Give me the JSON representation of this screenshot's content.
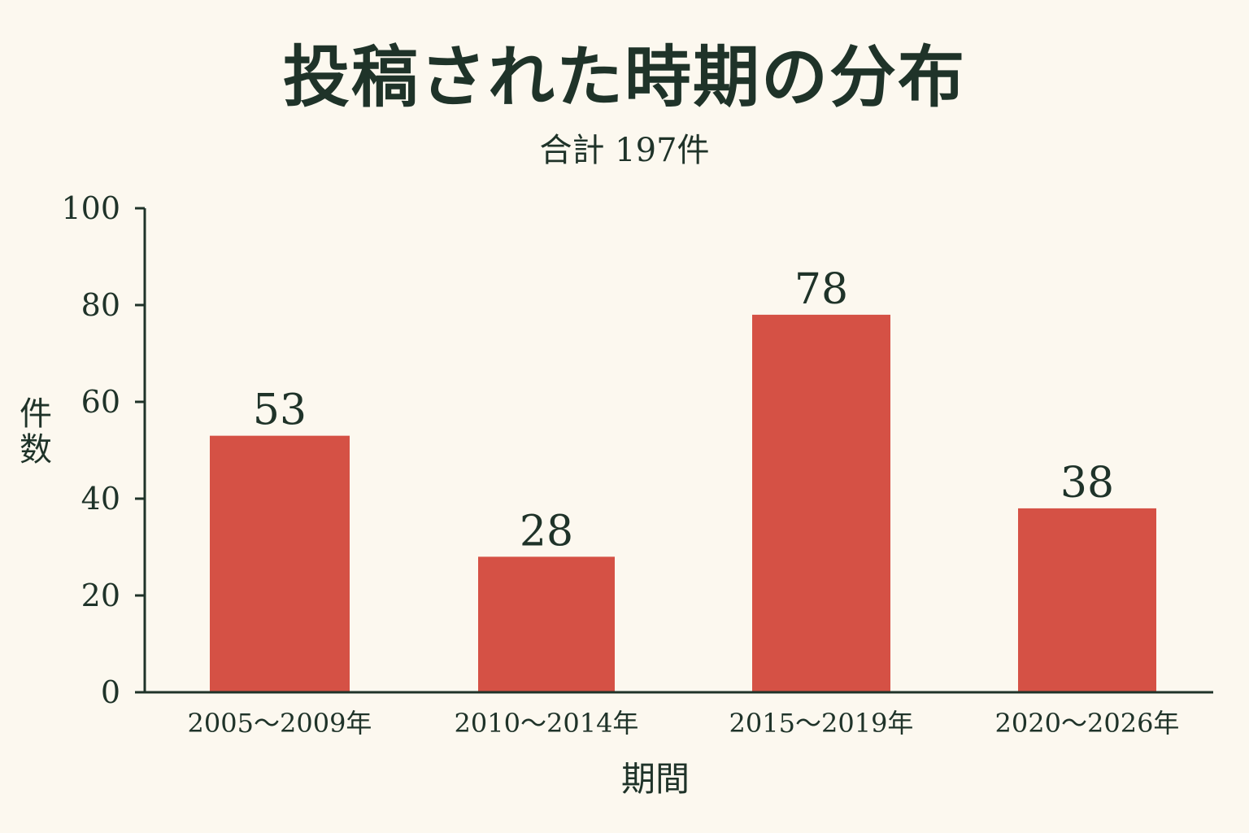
{
  "chart_data": {
    "type": "bar",
    "title": "投稿された時期の分布",
    "subtitle": "合計 197件",
    "xlabel": "期間",
    "ylabel": "件数",
    "categories": [
      "2005〜2009年",
      "2010〜2014年",
      "2015〜2019年",
      "2020〜2026年"
    ],
    "values": [
      53,
      28,
      78,
      38
    ],
    "ylim": [
      0,
      100
    ],
    "yticks": [
      0,
      20,
      40,
      60,
      80,
      100
    ],
    "grid": false,
    "bar_color": "#d55145",
    "text_color": "#1f3329",
    "background": "#fcf8ef"
  }
}
